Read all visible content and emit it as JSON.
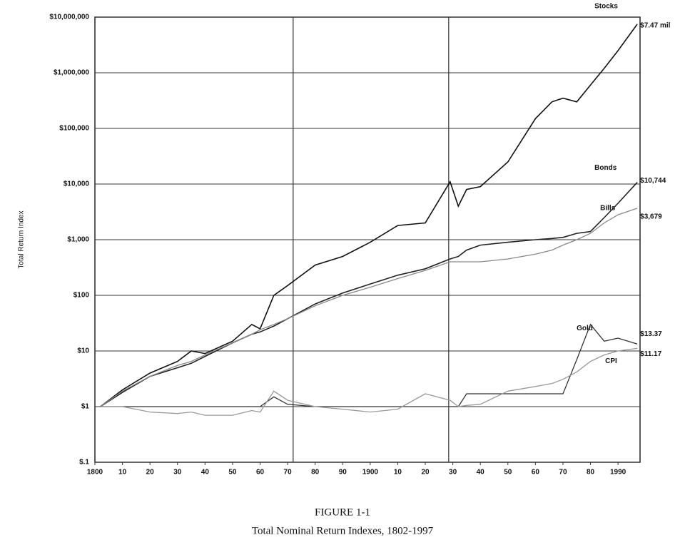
{
  "chart_data": {
    "type": "line",
    "caption_number": "FIGURE 1-1",
    "title": "Total Nominal Return Indexes, 1802-1997",
    "y_label": "Total Return Index",
    "log_y": true,
    "grid": true,
    "xlim": [
      1800,
      1998
    ],
    "xticks": [
      1800,
      {
        "value": 1810,
        "label": "10"
      },
      {
        "value": 1820,
        "label": "20"
      },
      {
        "value": 1830,
        "label": "30"
      },
      {
        "value": 1840,
        "label": "40"
      },
      {
        "value": 1850,
        "label": "50"
      },
      {
        "value": 1860,
        "label": "60"
      },
      {
        "value": 1870,
        "label": "70"
      },
      {
        "value": 1880,
        "label": "80"
      },
      {
        "value": 1890,
        "label": "90"
      },
      1900,
      {
        "value": 1910,
        "label": "10"
      },
      {
        "value": 1920,
        "label": "20"
      },
      {
        "value": 1930,
        "label": "30"
      },
      {
        "value": 1940,
        "label": "40"
      },
      {
        "value": 1950,
        "label": "50"
      },
      {
        "value": 1960,
        "label": "60"
      },
      {
        "value": 1970,
        "label": "70"
      },
      {
        "value": 1980,
        "label": "80"
      },
      1990
    ],
    "vlines": [
      1872,
      1928.5
    ],
    "ylim": [
      0.1,
      10000000
    ],
    "yticks": [
      {
        "value": 0.1,
        "label": "$.1"
      },
      {
        "value": 1,
        "label": "$1"
      },
      {
        "value": 10,
        "label": "$10"
      },
      {
        "value": 100,
        "label": "$100"
      },
      {
        "value": 1000,
        "label": "$1,000"
      },
      {
        "value": 10000,
        "label": "$10,000"
      },
      {
        "value": 100000,
        "label": "$100,000"
      },
      {
        "value": 1000000,
        "label": "$1,000,000"
      },
      {
        "value": 10000000,
        "label": "$10,000,000"
      }
    ],
    "x": [
      1802,
      1810,
      1820,
      1830,
      1835,
      1840,
      1850,
      1857,
      1860,
      1865,
      1870,
      1880,
      1890,
      1900,
      1910,
      1920,
      1929,
      1932,
      1935,
      1940,
      1950,
      1960,
      1966,
      1970,
      1975,
      1980,
      1985,
      1990,
      1997
    ],
    "series": [
      {
        "name": "Stocks",
        "color": "#111111",
        "end_label": "$7.47 mil",
        "values": [
          1,
          2,
          4,
          6.5,
          10,
          9,
          15,
          30,
          25,
          100,
          150,
          350,
          500,
          900,
          1800,
          2000,
          11000,
          4000,
          8000,
          9000,
          25000,
          150000,
          300000,
          350000,
          300000,
          600000,
          1200000,
          2500000,
          7470000
        ]
      },
      {
        "name": "Bonds",
        "color": "#222222",
        "end_label": "$10,744",
        "values": [
          1,
          1.8,
          3.5,
          5,
          6,
          8,
          14,
          20,
          22,
          28,
          38,
          70,
          110,
          160,
          230,
          300,
          450,
          500,
          650,
          800,
          900,
          1000,
          1050,
          1100,
          1300,
          1400,
          2500,
          4500,
          10744
        ]
      },
      {
        "name": "Bills",
        "color": "#888888",
        "end_label": "$3,679",
        "values": [
          1,
          1.9,
          3.5,
          5.5,
          6.5,
          8.5,
          14,
          20,
          24,
          30,
          38,
          65,
          100,
          140,
          200,
          280,
          400,
          400,
          400,
          400,
          450,
          550,
          650,
          800,
          1000,
          1300,
          2000,
          2800,
          3679
        ]
      },
      {
        "name": "Gold",
        "color": "#333333",
        "end_label": "$13.37",
        "values": [
          1,
          1,
          1,
          1,
          1,
          1,
          1,
          1,
          1,
          1.5,
          1.1,
          1,
          1,
          1,
          1,
          1,
          1,
          1,
          1.7,
          1.7,
          1.7,
          1.7,
          1.7,
          1.7,
          7,
          30,
          15,
          17,
          13.37
        ]
      },
      {
        "name": "CPI",
        "color": "#999999",
        "end_label": "$11.17",
        "values": [
          1,
          1,
          0.8,
          0.75,
          0.8,
          0.7,
          0.7,
          0.85,
          0.8,
          1.9,
          1.3,
          1,
          0.9,
          0.8,
          0.9,
          1.7,
          1.3,
          1,
          1.05,
          1.1,
          1.9,
          2.3,
          2.6,
          3.1,
          4.2,
          6.5,
          8.5,
          10,
          11.17
        ]
      }
    ]
  }
}
